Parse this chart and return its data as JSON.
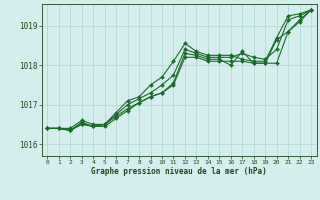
{
  "background_color": "#d4eeee",
  "grid_color": "#b8ddd8",
  "line_color": "#1a6b2a",
  "text_color": "#1a4a1a",
  "xlabel": "Graphe pression niveau de la mer (hPa)",
  "xlim": [
    -0.5,
    23.5
  ],
  "ylim": [
    1015.7,
    1019.55
  ],
  "yticks": [
    1016,
    1017,
    1018,
    1019
  ],
  "xticks": [
    0,
    1,
    2,
    3,
    4,
    5,
    6,
    7,
    8,
    9,
    10,
    11,
    12,
    13,
    14,
    15,
    16,
    17,
    18,
    19,
    20,
    21,
    22,
    23
  ],
  "series": [
    {
      "x": [
        0,
        1,
        2,
        3,
        4,
        5,
        6,
        7,
        8,
        9,
        10,
        11,
        12,
        13,
        14,
        15,
        16,
        17,
        18,
        19,
        20,
        21,
        22,
        23
      ],
      "y": [
        1016.4,
        1016.4,
        1016.4,
        1016.6,
        1016.5,
        1016.5,
        1016.8,
        1017.1,
        1017.2,
        1017.5,
        1017.7,
        1018.1,
        1018.55,
        1018.35,
        1018.25,
        1018.25,
        1018.25,
        1018.15,
        1018.1,
        1018.1,
        1018.7,
        1019.25,
        1019.3,
        1019.4
      ]
    },
    {
      "x": [
        0,
        1,
        2,
        3,
        4,
        5,
        6,
        7,
        8,
        9,
        10,
        11,
        12,
        13,
        14,
        15,
        16,
        17,
        18,
        19,
        20,
        21,
        22,
        23
      ],
      "y": [
        1016.4,
        1016.4,
        1016.35,
        1016.55,
        1016.45,
        1016.5,
        1016.75,
        1017.0,
        1017.15,
        1017.3,
        1017.5,
        1017.75,
        1018.4,
        1018.3,
        1018.2,
        1018.2,
        1018.2,
        1018.3,
        1018.2,
        1018.15,
        1018.4,
        1019.15,
        1019.25,
        1019.4
      ]
    },
    {
      "x": [
        0,
        1,
        2,
        3,
        4,
        5,
        6,
        7,
        8,
        9,
        10,
        11,
        12,
        13,
        14,
        15,
        16,
        17,
        18,
        19,
        20,
        21,
        22,
        23
      ],
      "y": [
        1016.4,
        1016.4,
        1016.35,
        1016.52,
        1016.45,
        1016.5,
        1016.7,
        1016.9,
        1017.05,
        1017.2,
        1017.3,
        1017.55,
        1018.3,
        1018.25,
        1018.15,
        1018.15,
        1018.0,
        1018.35,
        1018.05,
        1018.05,
        1018.05,
        1018.85,
        1019.15,
        1019.4
      ]
    },
    {
      "x": [
        0,
        1,
        2,
        3,
        4,
        5,
        6,
        7,
        8,
        9,
        10,
        11,
        12,
        13,
        14,
        15,
        16,
        17,
        18,
        19,
        20,
        21,
        22,
        23
      ],
      "y": [
        1016.4,
        1016.4,
        1016.35,
        1016.5,
        1016.45,
        1016.45,
        1016.65,
        1016.85,
        1017.05,
        1017.2,
        1017.3,
        1017.5,
        1018.2,
        1018.2,
        1018.1,
        1018.1,
        1018.1,
        1018.1,
        1018.05,
        1018.05,
        1018.65,
        1018.85,
        1019.1,
        1019.4
      ]
    }
  ]
}
